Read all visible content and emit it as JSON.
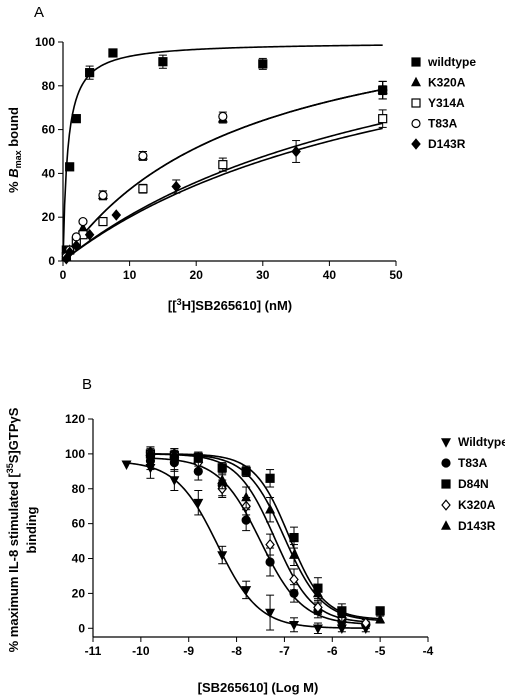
{
  "chart_data": [
    {
      "type": "scatter",
      "panel_label": "A",
      "xlabel_parts": [
        "[[",
        "3",
        "H]SB265610] (nM)"
      ],
      "ylabel_parts": [
        "% ",
        "B",
        "max",
        " bound"
      ],
      "xlim": [
        0,
        50
      ],
      "ylim": [
        0,
        100
      ],
      "xticks": [
        0,
        10,
        20,
        30,
        40,
        50
      ],
      "yticks": [
        0,
        20,
        40,
        60,
        80,
        100
      ],
      "legend_position": "right",
      "series": [
        {
          "name": "wildtype",
          "marker": "square-filled",
          "x": [
            0.5,
            1,
            2,
            4,
            7.5,
            15,
            30,
            48
          ],
          "y": [
            5,
            43,
            65,
            86,
            95,
            91,
            90,
            78
          ],
          "err": [
            0,
            1.5,
            1.5,
            3,
            1.5,
            3,
            2.5,
            2
          ],
          "fit": {
            "bmax": 100,
            "kd": 0.7
          }
        },
        {
          "name": "K320A",
          "marker": "triangle-filled",
          "x": [
            0.5,
            1,
            2,
            3,
            6,
            12,
            24,
            48
          ],
          "y": [
            2,
            5,
            8,
            15,
            30,
            48,
            65,
            78
          ],
          "err": [
            0,
            0,
            0,
            0,
            2,
            2,
            2,
            4
          ],
          "fit": {
            "bmax": 124,
            "kd": 28
          }
        },
        {
          "name": "Y314A",
          "marker": "square-open",
          "x": [
            0.5,
            1,
            2,
            3,
            6,
            12,
            24,
            48
          ],
          "y": [
            2,
            5,
            9,
            12,
            18,
            33,
            44,
            65
          ],
          "err": [
            0,
            0,
            0,
            0,
            0,
            2,
            3,
            4
          ],
          "fit": {
            "bmax": 135,
            "kd": 55
          }
        },
        {
          "name": "T83A",
          "marker": "circle-open",
          "x": [
            0.5,
            1,
            2,
            3,
            6,
            12,
            24,
            48
          ],
          "y": [
            2,
            5,
            11,
            18,
            30,
            48,
            66,
            78
          ],
          "err": [
            0,
            0,
            0,
            0,
            2,
            2,
            2,
            4
          ],
          "fit": {
            "bmax": 124,
            "kd": 28
          }
        },
        {
          "name": "D143R",
          "marker": "diamond-filled",
          "x": [
            0.5,
            1,
            2,
            4,
            8,
            17,
            35,
            48
          ],
          "y": [
            1,
            4,
            7,
            12,
            21,
            34,
            50,
            78
          ],
          "err": [
            0,
            0,
            0,
            0,
            0,
            3,
            5,
            4
          ],
          "fit": {
            "bmax": 130,
            "kd": 55
          }
        }
      ]
    },
    {
      "type": "scatter",
      "panel_label": "B",
      "xlabel": "[SB265610] (Log M)",
      "ylabel_parts": [
        "% maximum IL-8 stimulated [",
        "35",
        "S]GTPγS",
        "binding"
      ],
      "xlim": [
        -11,
        -4
      ],
      "ylim": [
        -5,
        120
      ],
      "xticks": [
        -11,
        -10,
        -9,
        -8,
        -7,
        -6,
        -5,
        -4
      ],
      "yticks": [
        0,
        20,
        40,
        60,
        80,
        100,
        120
      ],
      "legend_position": "right",
      "series": [
        {
          "name": "Wildtype",
          "marker": "triangle-down-filled",
          "x": [
            -10.3,
            -9.8,
            -9.3,
            -8.8,
            -8.3,
            -7.8,
            -7.3,
            -6.8,
            -6.3,
            -5.8,
            -5.3
          ],
          "y": [
            94,
            92,
            85,
            72,
            42,
            22,
            9,
            2,
            0,
            0,
            0
          ],
          "err": [
            0,
            6,
            6,
            7,
            5,
            5,
            10,
            4,
            3,
            2,
            2
          ],
          "fit": {
            "top": 96,
            "bottom": 0,
            "logec50": -8.4,
            "hill": 1
          }
        },
        {
          "name": "T83A",
          "marker": "circle-filled",
          "x": [
            -9.8,
            -9.3,
            -8.8,
            -8.3,
            -7.8,
            -7.3,
            -6.8,
            -6.3,
            -5.8,
            -5.3
          ],
          "y": [
            96,
            95,
            90,
            82,
            62,
            38,
            20,
            10,
            4,
            2
          ],
          "err": [
            5,
            5,
            5,
            6,
            6,
            8,
            5,
            4,
            3,
            2
          ],
          "fit": {
            "top": 98,
            "bottom": 2,
            "logec50": -7.5,
            "hill": 1
          }
        },
        {
          "name": "D84N",
          "marker": "square-filled",
          "x": [
            -9.8,
            -9.3,
            -8.8,
            -8.3,
            -7.8,
            -7.3,
            -6.8,
            -6.3,
            -5.8,
            -5.0
          ],
          "y": [
            100,
            99,
            98,
            92,
            90,
            86,
            52,
            23,
            10,
            10
          ],
          "err": [
            3,
            3,
            3,
            3,
            3,
            5,
            6,
            6,
            4,
            2
          ],
          "fit": {
            "top": 100,
            "bottom": 5,
            "logec50": -6.9,
            "hill": 1.2
          }
        },
        {
          "name": "K320A",
          "marker": "diamond-open",
          "x": [
            -9.8,
            -9.3,
            -8.8,
            -8.3,
            -7.8,
            -7.3,
            -6.8,
            -6.3,
            -5.8,
            -5.3
          ],
          "y": [
            101,
            100,
            95,
            80,
            70,
            48,
            28,
            12,
            6,
            3
          ],
          "err": [
            3,
            3,
            4,
            5,
            5,
            6,
            6,
            4,
            3,
            2
          ],
          "fit": {
            "top": 100,
            "bottom": 3,
            "logec50": -7.2,
            "hill": 1.1
          }
        },
        {
          "name": "D143R",
          "marker": "triangle-filled",
          "x": [
            -9.8,
            -9.3,
            -8.8,
            -8.3,
            -7.8,
            -7.3,
            -6.8,
            -6.3,
            -5.8,
            -5.0
          ],
          "y": [
            101,
            100,
            97,
            85,
            75,
            68,
            42,
            20,
            8,
            5
          ],
          "err": [
            3,
            3,
            4,
            5,
            6,
            7,
            6,
            5,
            4,
            2
          ],
          "fit": {
            "top": 100,
            "bottom": 4,
            "logec50": -7.0,
            "hill": 1.1
          }
        }
      ]
    }
  ]
}
